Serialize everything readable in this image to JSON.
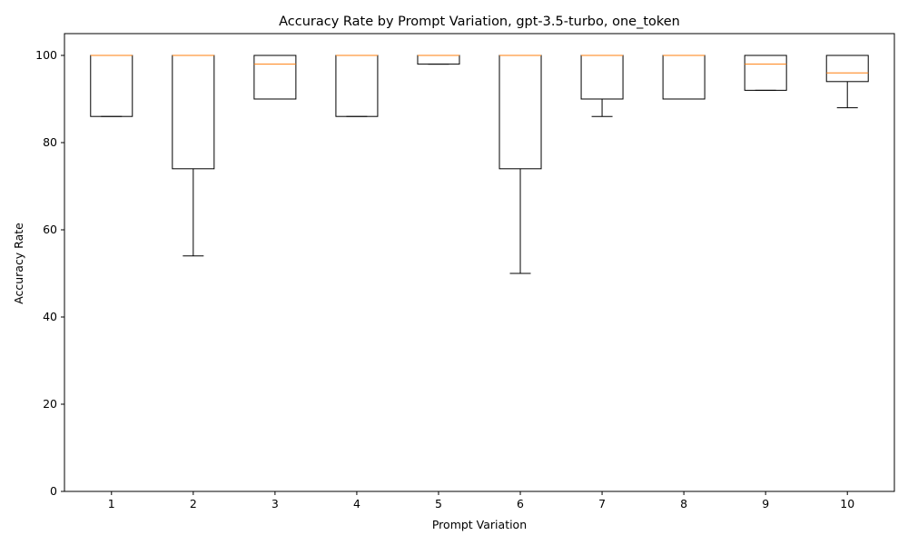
{
  "chart_data": {
    "type": "box",
    "title": "Accuracy Rate by Prompt Variation, gpt-3.5-turbo, one_token",
    "xlabel": "Prompt Variation",
    "ylabel": "Accuracy Rate",
    "categories": [
      "1",
      "2",
      "3",
      "4",
      "5",
      "6",
      "7",
      "8",
      "9",
      "10"
    ],
    "ylim": [
      0,
      105
    ],
    "yticks": [
      0,
      20,
      40,
      60,
      80,
      100
    ],
    "grid": false,
    "boxes": [
      {
        "category": "1",
        "whisker_low": 86,
        "q1": 86,
        "median": 100,
        "q3": 100,
        "whisker_high": 100
      },
      {
        "category": "2",
        "whisker_low": 54,
        "q1": 74,
        "median": 100,
        "q3": 100,
        "whisker_high": 100
      },
      {
        "category": "3",
        "whisker_low": 90,
        "q1": 90,
        "median": 98,
        "q3": 100,
        "whisker_high": 100
      },
      {
        "category": "4",
        "whisker_low": 86,
        "q1": 86,
        "median": 100,
        "q3": 100,
        "whisker_high": 100
      },
      {
        "category": "5",
        "whisker_low": 98,
        "q1": 98,
        "median": 100,
        "q3": 100,
        "whisker_high": 100
      },
      {
        "category": "6",
        "whisker_low": 50,
        "q1": 74,
        "median": 100,
        "q3": 100,
        "whisker_high": 100
      },
      {
        "category": "7",
        "whisker_low": 86,
        "q1": 90,
        "median": 100,
        "q3": 100,
        "whisker_high": 100
      },
      {
        "category": "8",
        "whisker_low": 90,
        "q1": 90,
        "median": 100,
        "q3": 100,
        "whisker_high": 100
      },
      {
        "category": "9",
        "whisker_low": 92,
        "q1": 92,
        "median": 98,
        "q3": 100,
        "whisker_high": 100
      },
      {
        "category": "10",
        "whisker_low": 88,
        "q1": 94,
        "median": 96,
        "q3": 100,
        "whisker_high": 100
      }
    ],
    "colors": {
      "box": "#000000",
      "median": "#ff7f0e",
      "axis": "#000000"
    }
  }
}
